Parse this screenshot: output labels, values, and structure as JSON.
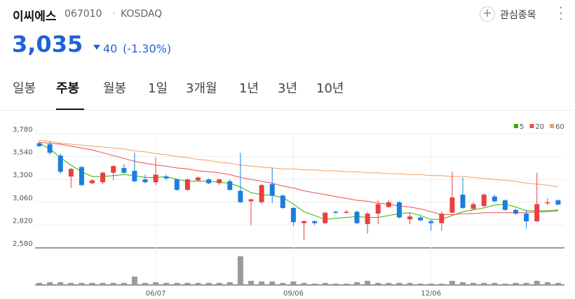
{
  "header": {
    "name": "이씨에스",
    "code": "067010",
    "market": "KOSDAQ",
    "price": "3,035",
    "change": "40",
    "change_pct": "(-1.30%)",
    "watch": "관심종목"
  },
  "tabs": [
    "일봉",
    "주봉",
    "월봉",
    "1일",
    "3개월",
    "1년",
    "3년",
    "10년"
  ],
  "selected_tab": 1,
  "chart_data": {
    "type": "candlestick",
    "categories": [
      null,
      null,
      null,
      null,
      null,
      null,
      null,
      null,
      null,
      null,
      null,
      "06/07",
      null,
      null,
      null,
      null,
      null,
      null,
      null,
      null,
      null,
      null,
      null,
      null,
      "09/06",
      null,
      null,
      null,
      null,
      null,
      null,
      null,
      null,
      null,
      null,
      null,
      null,
      "12/06",
      null,
      null,
      null,
      null,
      null,
      null,
      null,
      null,
      null,
      null,
      null,
      null
    ],
    "open": [
      3680,
      3670,
      3550,
      3330,
      3430,
      3260,
      3270,
      3370,
      3420,
      3390,
      3300,
      3270,
      3330,
      3300,
      3190,
      3290,
      3300,
      3260,
      3280,
      3180,
      3070,
      3060,
      3250,
      3130,
      3000,
      2840,
      2860,
      2840,
      2960,
      2950,
      2960,
      2830,
      2940,
      3010,
      3060,
      2880,
      2900,
      2860,
      2840,
      2950,
      3140,
      2990,
      3020,
      3120,
      3080,
      2980,
      2940,
      2860,
      3050,
      3080
    ],
    "high": [
      3700,
      3700,
      3570,
      3420,
      3440,
      3300,
      3380,
      3450,
      3460,
      3580,
      3350,
      3530,
      3350,
      3310,
      3310,
      3330,
      3310,
      3310,
      3300,
      3580,
      3100,
      3250,
      3420,
      3140,
      3010,
      2870,
      2870,
      2960,
      2970,
      2980,
      2970,
      2960,
      3080,
      3080,
      3070,
      2950,
      2910,
      2880,
      2960,
      3380,
      3320,
      3060,
      3150,
      3140,
      3090,
      2990,
      2980,
      3370,
      3100,
      3090
    ],
    "low": [
      3640,
      3560,
      3360,
      3210,
      3230,
      3250,
      3250,
      3290,
      3360,
      3270,
      3260,
      3240,
      3290,
      3180,
      3180,
      3280,
      3250,
      3240,
      3180,
      3050,
      2820,
      3040,
      3050,
      2990,
      2810,
      2660,
      2820,
      2830,
      2940,
      2940,
      2830,
      2730,
      2830,
      3000,
      2890,
      2830,
      2860,
      2760,
      2760,
      2940,
      2990,
      2980,
      3010,
      3060,
      2970,
      2930,
      2780,
      2850,
      3030,
      3030
    ],
    "close": [
      3650,
      3580,
      3380,
      3410,
      3240,
      3290,
      3370,
      3440,
      3370,
      3280,
      3270,
      3350,
      3310,
      3190,
      3300,
      3320,
      3260,
      3300,
      3190,
      3060,
      3090,
      3240,
      3130,
      3000,
      2850,
      2860,
      2840,
      2950,
      2950,
      2960,
      2840,
      2940,
      3040,
      3060,
      2900,
      2910,
      2870,
      2840,
      2940,
      3110,
      3000,
      3040,
      3140,
      3070,
      2980,
      2940,
      2860,
      3040,
      3060,
      3035
    ],
    "volume": [
      3,
      4,
      4,
      3,
      3,
      3,
      3,
      3,
      3,
      12,
      3,
      4,
      3,
      3,
      3,
      3,
      3,
      3,
      4,
      41,
      6,
      5,
      5,
      3,
      5,
      3,
      2,
      3,
      2,
      2,
      4,
      6,
      3,
      3,
      3,
      3,
      2,
      2,
      2,
      6,
      4,
      3,
      3,
      3,
      2,
      3,
      3,
      6,
      4,
      3
    ],
    "up_color": "#e8403f",
    "down_color": "#1a7ee0",
    "volume_color": "#9a9a9a",
    "ylim": [
      2580,
      3780
    ],
    "yticks": [
      {
        "value": 2580,
        "label": "2,580"
      },
      {
        "value": 2820,
        "label": "2,820"
      },
      {
        "value": 3060,
        "label": "3,060"
      },
      {
        "value": 3300,
        "label": "3,300"
      },
      {
        "value": 3540,
        "label": "3,540"
      },
      {
        "value": 3780,
        "label": "3,780"
      }
    ],
    "grid": true,
    "legend": "top-right",
    "series": [
      {
        "name": "5",
        "color": "#2db400",
        "values": [
          3680,
          3620,
          3530,
          3450,
          3380,
          3330,
          3330,
          3340,
          3350,
          3340,
          3320,
          3320,
          3330,
          3300,
          3280,
          3280,
          3280,
          3270,
          3260,
          3220,
          3160,
          3140,
          3130,
          3110,
          3040,
          2960,
          2920,
          2880,
          2890,
          2900,
          2910,
          2900,
          2900,
          2920,
          2940,
          2950,
          2920,
          2880,
          2880,
          2920,
          2960,
          2980,
          3000,
          3030,
          3040,
          3010,
          2970,
          2970,
          2970,
          2980
        ]
      },
      {
        "name": "20",
        "color": "#f04e4e",
        "values": [
          3690,
          3680,
          3670,
          3650,
          3630,
          3610,
          3580,
          3550,
          3520,
          3490,
          3470,
          3450,
          3440,
          3420,
          3410,
          3390,
          3380,
          3370,
          3350,
          3320,
          3300,
          3280,
          3260,
          3230,
          3210,
          3180,
          3160,
          3140,
          3120,
          3100,
          3080,
          3070,
          3050,
          3040,
          3020,
          3010,
          2990,
          2960,
          2930,
          2930,
          2940,
          2940,
          2950,
          2950,
          2950,
          2950,
          2950,
          2960,
          2960,
          2970
        ]
      },
      {
        "name": "60",
        "color": "#f0a060",
        "values": [
          3710,
          3700,
          3680,
          3670,
          3660,
          3650,
          3640,
          3630,
          3620,
          3600,
          3590,
          3570,
          3560,
          3540,
          3530,
          3510,
          3500,
          3480,
          3470,
          3450,
          3440,
          3430,
          3420,
          3410,
          3410,
          3400,
          3400,
          3390,
          3390,
          3380,
          3380,
          3370,
          3370,
          3360,
          3360,
          3350,
          3350,
          3340,
          3340,
          3330,
          3330,
          3320,
          3310,
          3300,
          3290,
          3280,
          3260,
          3250,
          3240,
          3220
        ]
      }
    ]
  }
}
